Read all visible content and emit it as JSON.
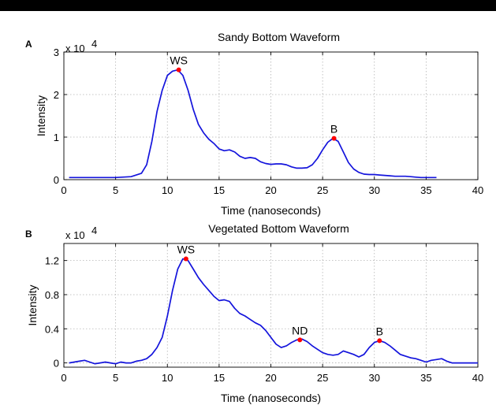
{
  "colors": {
    "line": "#1414dc",
    "marker": "#ff0000"
  },
  "chart_data": [
    {
      "type": "line",
      "panel": "A",
      "title": "Sandy Bottom Waveform",
      "xlabel": "Time (nanoseconds)",
      "ylabel": "Intensity",
      "scale_label": "x 10",
      "scale_exp": "4",
      "xlim": [
        0,
        40
      ],
      "ylim": [
        0,
        3
      ],
      "xticks": [
        "0",
        "5",
        "10",
        "15",
        "20",
        "25",
        "30",
        "35",
        "40"
      ],
      "yticks": [
        "0",
        "1",
        "2",
        "3"
      ],
      "ytick_values": [
        0,
        1,
        2,
        3
      ],
      "grid": true,
      "series": [
        {
          "x": [
            0.5,
            5,
            6.5,
            7.5,
            8,
            8.5,
            9,
            9.5,
            10,
            10.5,
            11,
            11.5,
            12,
            12.5,
            13,
            13.5,
            14,
            14.5,
            15,
            15.5,
            16,
            16.5,
            17,
            17.5,
            18,
            18.5,
            19,
            19.5,
            20,
            20.5,
            21,
            21.5,
            22,
            22.5,
            23,
            23.5,
            24,
            24.5,
            25,
            25.5,
            26,
            26.5,
            27,
            27.5,
            28,
            28.5,
            29,
            29.5,
            30,
            30.5,
            31,
            31.5,
            32,
            32.5,
            33,
            33.5,
            34,
            34.5,
            35,
            36
          ],
          "y": [
            0.05,
            0.05,
            0.07,
            0.15,
            0.35,
            0.9,
            1.6,
            2.1,
            2.45,
            2.55,
            2.58,
            2.45,
            2.1,
            1.65,
            1.3,
            1.1,
            0.95,
            0.85,
            0.72,
            0.68,
            0.7,
            0.65,
            0.55,
            0.5,
            0.52,
            0.5,
            0.42,
            0.38,
            0.36,
            0.37,
            0.37,
            0.35,
            0.3,
            0.27,
            0.27,
            0.28,
            0.35,
            0.5,
            0.7,
            0.88,
            0.97,
            0.9,
            0.65,
            0.4,
            0.25,
            0.17,
            0.13,
            0.12,
            0.12,
            0.11,
            0.1,
            0.09,
            0.08,
            0.08,
            0.08,
            0.07,
            0.06,
            0.05,
            0.05,
            0.05
          ]
        }
      ],
      "annotations": [
        {
          "label": "WS",
          "x": 11.1,
          "y": 2.58
        },
        {
          "label": "B",
          "x": 26.1,
          "y": 0.97
        }
      ]
    },
    {
      "type": "line",
      "panel": "B",
      "title": "Vegetated Bottom Waveform",
      "xlabel": "Time (nanoseconds)",
      "ylabel": "Intensity",
      "scale_label": "x 10",
      "scale_exp": "4",
      "xlim": [
        0,
        40
      ],
      "ylim": [
        -0.05,
        1.4
      ],
      "xticks": [
        "0",
        "5",
        "10",
        "15",
        "20",
        "25",
        "30",
        "35",
        "40"
      ],
      "yticks": [
        "0",
        "0.4",
        "0.8",
        "1.2"
      ],
      "ytick_values": [
        0,
        0.4,
        0.8,
        1.2
      ],
      "grid": true,
      "series": [
        {
          "x": [
            0.5,
            1,
            1.5,
            2,
            2.5,
            3,
            3.5,
            4,
            4.5,
            5,
            5.5,
            6,
            6.5,
            7,
            7.5,
            8,
            8.5,
            9,
            9.5,
            10,
            10.5,
            11,
            11.5,
            12,
            12.5,
            13,
            13.5,
            14,
            14.5,
            15,
            15.5,
            16,
            16.5,
            17,
            17.5,
            18,
            18.5,
            19,
            19.5,
            20,
            20.5,
            21,
            21.5,
            22,
            22.5,
            23,
            23.5,
            24,
            24.5,
            25,
            25.5,
            26,
            26.5,
            27,
            27.5,
            28,
            28.5,
            29,
            29.5,
            30,
            30.5,
            31,
            31.5,
            32,
            32.5,
            33,
            33.5,
            34,
            34.5,
            35,
            35.5,
            36,
            36.5,
            37,
            37.5,
            38,
            38.5,
            39,
            40
          ],
          "y": [
            0.0,
            0.01,
            0.02,
            0.03,
            0.01,
            -0.01,
            0.0,
            0.01,
            0.0,
            -0.01,
            0.01,
            0.0,
            0.0,
            0.02,
            0.03,
            0.05,
            0.1,
            0.18,
            0.3,
            0.55,
            0.85,
            1.1,
            1.22,
            1.2,
            1.1,
            1.0,
            0.92,
            0.85,
            0.78,
            0.73,
            0.74,
            0.72,
            0.64,
            0.58,
            0.55,
            0.51,
            0.47,
            0.44,
            0.38,
            0.3,
            0.22,
            0.18,
            0.2,
            0.24,
            0.27,
            0.28,
            0.25,
            0.2,
            0.16,
            0.12,
            0.1,
            0.09,
            0.1,
            0.14,
            0.12,
            0.1,
            0.07,
            0.1,
            0.18,
            0.24,
            0.26,
            0.24,
            0.2,
            0.15,
            0.1,
            0.08,
            0.06,
            0.05,
            0.03,
            0.01,
            0.03,
            0.04,
            0.05,
            0.02,
            0.0,
            0.0,
            0.0,
            0.0,
            0.0
          ]
        }
      ],
      "annotations": [
        {
          "label": "WS",
          "x": 11.8,
          "y": 1.22
        },
        {
          "label": "ND",
          "x": 22.8,
          "y": 0.27
        },
        {
          "label": "B",
          "x": 30.5,
          "y": 0.26
        }
      ]
    }
  ]
}
